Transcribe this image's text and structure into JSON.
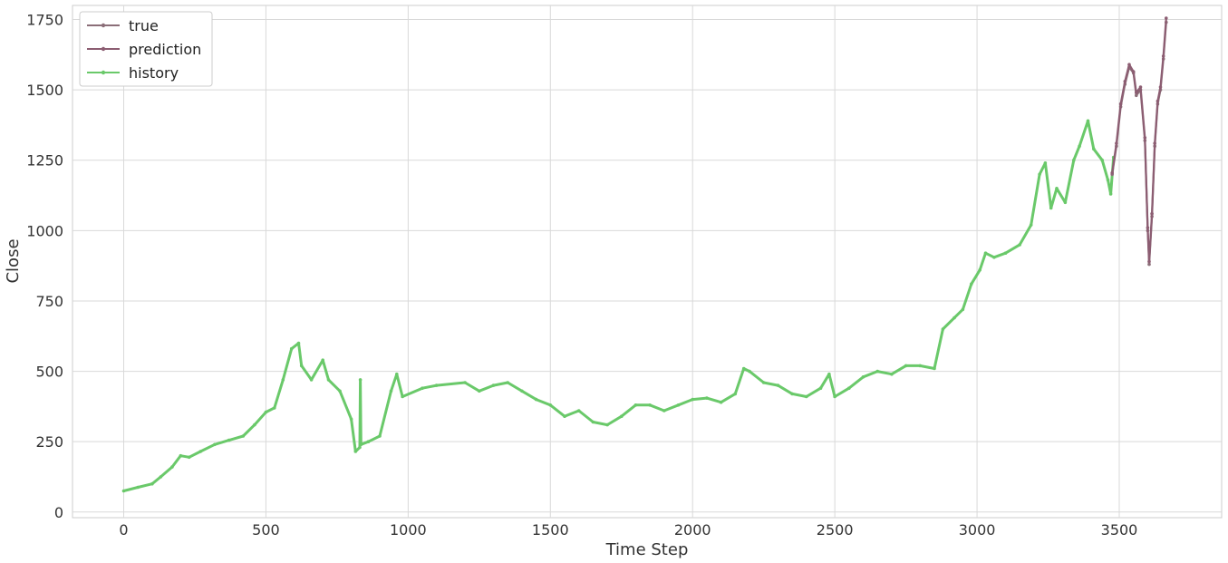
{
  "chart_data": {
    "type": "line",
    "xlabel": "Time Step",
    "ylabel": "Close",
    "xlim": [
      -180,
      3860
    ],
    "ylim": [
      -20,
      1800
    ],
    "xticks": [
      0,
      500,
      1000,
      1500,
      2000,
      2500,
      3000,
      3500
    ],
    "yticks": [
      0,
      250,
      500,
      750,
      1000,
      1250,
      1500,
      1750
    ],
    "grid": true,
    "legend_position": "top-left",
    "series": [
      {
        "name": "true",
        "color": "#8b6e78",
        "points": [
          [
            3475,
            1200
          ],
          [
            3490,
            1300
          ],
          [
            3505,
            1440
          ],
          [
            3520,
            1520
          ],
          [
            3535,
            1580
          ],
          [
            3550,
            1560
          ],
          [
            3560,
            1480
          ],
          [
            3575,
            1500
          ],
          [
            3590,
            1320
          ],
          [
            3600,
            1000
          ],
          [
            3605,
            880
          ],
          [
            3615,
            1050
          ],
          [
            3625,
            1300
          ],
          [
            3635,
            1450
          ],
          [
            3645,
            1500
          ],
          [
            3655,
            1610
          ],
          [
            3665,
            1740
          ]
        ]
      },
      {
        "name": "prediction",
        "color": "#8c5d72",
        "points": [
          [
            3475,
            1205
          ],
          [
            3490,
            1310
          ],
          [
            3505,
            1450
          ],
          [
            3520,
            1530
          ],
          [
            3535,
            1590
          ],
          [
            3550,
            1565
          ],
          [
            3560,
            1490
          ],
          [
            3575,
            1510
          ],
          [
            3590,
            1330
          ],
          [
            3600,
            1010
          ],
          [
            3605,
            890
          ],
          [
            3615,
            1060
          ],
          [
            3625,
            1310
          ],
          [
            3635,
            1460
          ],
          [
            3645,
            1510
          ],
          [
            3655,
            1620
          ],
          [
            3665,
            1755
          ]
        ]
      },
      {
        "name": "history",
        "color": "#6ac96a",
        "points": [
          [
            0,
            75
          ],
          [
            50,
            88
          ],
          [
            100,
            100
          ],
          [
            130,
            125
          ],
          [
            170,
            160
          ],
          [
            200,
            200
          ],
          [
            230,
            195
          ],
          [
            270,
            215
          ],
          [
            320,
            240
          ],
          [
            370,
            255
          ],
          [
            420,
            270
          ],
          [
            460,
            310
          ],
          [
            500,
            355
          ],
          [
            530,
            370
          ],
          [
            560,
            470
          ],
          [
            590,
            580
          ],
          [
            615,
            600
          ],
          [
            625,
            520
          ],
          [
            660,
            470
          ],
          [
            700,
            540
          ],
          [
            720,
            470
          ],
          [
            760,
            430
          ],
          [
            800,
            330
          ],
          [
            815,
            215
          ],
          [
            830,
            230
          ],
          [
            832,
            470
          ],
          [
            834,
            240
          ],
          [
            860,
            250
          ],
          [
            900,
            270
          ],
          [
            940,
            430
          ],
          [
            960,
            490
          ],
          [
            980,
            410
          ],
          [
            1050,
            440
          ],
          [
            1100,
            450
          ],
          [
            1200,
            460
          ],
          [
            1250,
            430
          ],
          [
            1300,
            450
          ],
          [
            1350,
            460
          ],
          [
            1400,
            430
          ],
          [
            1450,
            400
          ],
          [
            1500,
            380
          ],
          [
            1550,
            340
          ],
          [
            1600,
            360
          ],
          [
            1650,
            320
          ],
          [
            1700,
            310
          ],
          [
            1750,
            340
          ],
          [
            1800,
            380
          ],
          [
            1850,
            380
          ],
          [
            1900,
            360
          ],
          [
            1950,
            380
          ],
          [
            2000,
            400
          ],
          [
            2050,
            405
          ],
          [
            2100,
            390
          ],
          [
            2150,
            420
          ],
          [
            2180,
            510
          ],
          [
            2200,
            500
          ],
          [
            2250,
            460
          ],
          [
            2300,
            450
          ],
          [
            2350,
            420
          ],
          [
            2400,
            410
          ],
          [
            2450,
            440
          ],
          [
            2480,
            490
          ],
          [
            2500,
            410
          ],
          [
            2550,
            440
          ],
          [
            2600,
            480
          ],
          [
            2650,
            500
          ],
          [
            2700,
            490
          ],
          [
            2750,
            520
          ],
          [
            2800,
            520
          ],
          [
            2850,
            510
          ],
          [
            2880,
            650
          ],
          [
            2920,
            690
          ],
          [
            2950,
            720
          ],
          [
            2980,
            810
          ],
          [
            3010,
            860
          ],
          [
            3030,
            920
          ],
          [
            3060,
            905
          ],
          [
            3100,
            920
          ],
          [
            3150,
            950
          ],
          [
            3190,
            1020
          ],
          [
            3220,
            1200
          ],
          [
            3240,
            1240
          ],
          [
            3260,
            1080
          ],
          [
            3280,
            1150
          ],
          [
            3310,
            1100
          ],
          [
            3340,
            1250
          ],
          [
            3360,
            1300
          ],
          [
            3390,
            1390
          ],
          [
            3410,
            1290
          ],
          [
            3440,
            1250
          ],
          [
            3460,
            1180
          ],
          [
            3470,
            1130
          ],
          [
            3480,
            1260
          ]
        ]
      }
    ]
  }
}
